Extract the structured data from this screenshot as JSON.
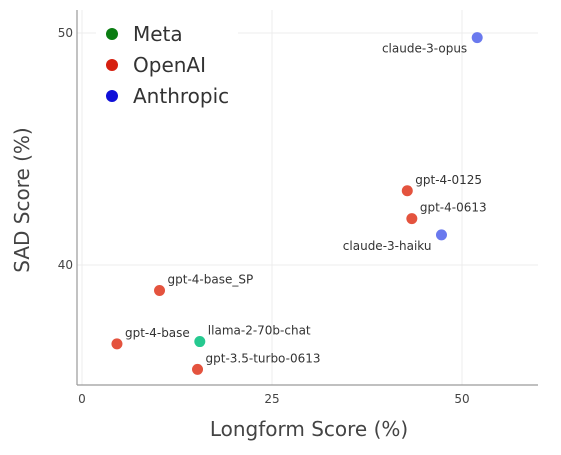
{
  "chart_data": {
    "type": "scatter",
    "xlabel": "Longform Score (%)",
    "ylabel": "SAD Score (%)",
    "xlim": [
      0,
      60
    ],
    "ylim": [
      34.8,
      51.2
    ],
    "x_ticks": [
      0,
      25,
      50
    ],
    "y_ticks": [
      40,
      50
    ],
    "grid": true,
    "legend": {
      "placement": "top-left",
      "entries": [
        {
          "name": "Meta",
          "color": "#0a7d12"
        },
        {
          "name": "OpenAI",
          "color": "#d62010"
        },
        {
          "name": "Anthropic",
          "color": "#1010d8"
        }
      ]
    },
    "points": [
      {
        "label": "claude-3-opus",
        "x": 52,
        "y": 49.8,
        "group": "Anthropic",
        "color": "#6a79ee",
        "label_pos": "left-below"
      },
      {
        "label": "gpt-4-0125",
        "x": 42.8,
        "y": 43.2,
        "group": "OpenAI",
        "color": "#e4533e",
        "label_pos": "right-above"
      },
      {
        "label": "gpt-4-0613",
        "x": 43.4,
        "y": 42.0,
        "group": "OpenAI",
        "color": "#e4533e",
        "label_pos": "right-above"
      },
      {
        "label": "claude-3-haiku",
        "x": 47.3,
        "y": 41.3,
        "group": "Anthropic",
        "color": "#6a79ee",
        "label_pos": "left-below"
      },
      {
        "label": "gpt-4-base_SP",
        "x": 10.2,
        "y": 38.9,
        "group": "OpenAI",
        "color": "#e4533e",
        "label_pos": "right-above"
      },
      {
        "label": "gpt-4-base",
        "x": 4.6,
        "y": 36.6,
        "group": "OpenAI",
        "color": "#e4533e",
        "label_pos": "right-above"
      },
      {
        "label": "llama-2-70b-chat",
        "x": 15.5,
        "y": 36.7,
        "group": "Meta",
        "color": "#26c990",
        "label_pos": "right-above"
      },
      {
        "label": "gpt-3.5-turbo-0613",
        "x": 15.2,
        "y": 35.5,
        "group": "OpenAI",
        "color": "#e4533e",
        "label_pos": "right-above"
      }
    ]
  }
}
